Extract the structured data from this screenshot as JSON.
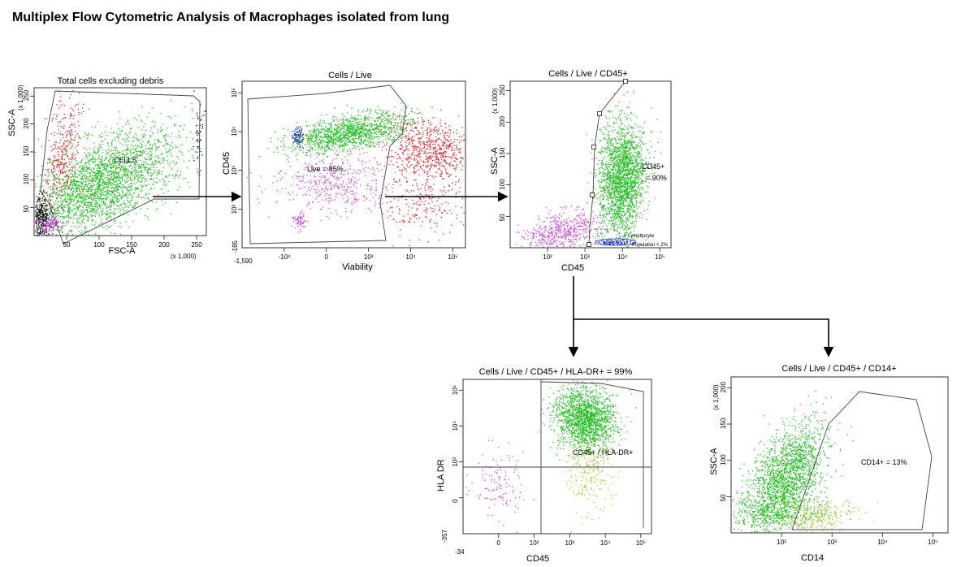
{
  "page": {
    "title": "Multiplex Flow Cytometric Analysis of Macrophages isolated from lung"
  },
  "colors": {
    "green": "#1fbf1f",
    "red": "#e02020",
    "purple": "#cc44dd",
    "blue": "#2233cc",
    "black": "#111111",
    "yellowgreen": "#aacc22",
    "gate": "#555555",
    "arrow": "#000000"
  },
  "chart_data": [
    {
      "id": "p1",
      "type": "scatter",
      "title": "Total cells excluding debris",
      "xlabel": "FSC-A",
      "ylabel": "SSC-A",
      "xscale_note": "(x 1,000)",
      "yscale_note": "(x 1,000)",
      "xlim": [
        0,
        262
      ],
      "ylim": [
        0,
        262
      ],
      "xticks": [
        "50",
        "100",
        "150",
        "200",
        "250"
      ],
      "yticks": [
        "50",
        "100",
        "150",
        "200",
        "250"
      ],
      "gate_label": "CELLS",
      "populations": [
        {
          "color": "green",
          "label": "cells",
          "approx_count": 2200,
          "cx": 110,
          "cy": 95,
          "sx": 40,
          "sy": 45
        },
        {
          "color": "red",
          "label": "red-cells",
          "approx_count": 400,
          "cx": 45,
          "cy": 130,
          "sx": 15,
          "sy": 35
        },
        {
          "color": "black",
          "label": "debris",
          "approx_count": 350,
          "cx": 8,
          "cy": 20,
          "sx": 6,
          "sy": 12
        },
        {
          "color": "purple",
          "label": "small",
          "approx_count": 120,
          "cx": 25,
          "cy": 25,
          "sx": 7,
          "sy": 6
        }
      ]
    },
    {
      "id": "p2",
      "type": "scatter",
      "title": "Cells / Live",
      "xlabel": "Viability",
      "ylabel": "CD45",
      "xticks": [
        "-10³",
        "0",
        "10³",
        "10⁴",
        "10⁵"
      ],
      "yticks": [
        "10²",
        "10³",
        "10⁴",
        "10⁵"
      ],
      "xmin_label": "-1,590",
      "ymin_label": "-185",
      "gate_label": "Live = 85%",
      "populations": [
        {
          "color": "green",
          "label": "CD45+ live",
          "approx_count": 1300
        },
        {
          "color": "red",
          "label": "dead",
          "approx_count": 900
        },
        {
          "color": "purple",
          "label": "CD45- live",
          "approx_count": 500
        },
        {
          "color": "blue",
          "label": "lymphocytes",
          "approx_count": 80
        }
      ]
    },
    {
      "id": "p3",
      "type": "scatter",
      "title": "Cells / Live / CD45+",
      "xlabel": "CD45",
      "ylabel": "SSC-A",
      "yscale_note": "(x 1,000)",
      "xticks": [
        "10²",
        "10³",
        "10⁴",
        "10⁵"
      ],
      "yticks": [
        "50",
        "100",
        "150",
        "200",
        "250"
      ],
      "gate_label": "CD45+\n= 90%",
      "annotation": "= Lymphocyte Population < 2%",
      "populations": [
        {
          "color": "green",
          "label": "CD45+",
          "approx_count": 2200
        },
        {
          "color": "purple",
          "label": "CD45-",
          "approx_count": 600
        },
        {
          "color": "blue",
          "label": "lymphocytes",
          "approx_count": 100
        }
      ]
    },
    {
      "id": "p4",
      "type": "scatter",
      "title": "Cells / Live / CD45+ / HLA-DR+ = 99%",
      "xlabel": "CD45",
      "ylabel": "HLA DR",
      "xticks": [
        "0",
        "10²",
        "10³",
        "10⁴",
        "10⁵"
      ],
      "yticks": [
        "0",
        "10³",
        "10⁴",
        "10⁵"
      ],
      "xmin_label": "-34",
      "ymin_label": "-357",
      "gate_label": "CD45+ / HLA-DR+",
      "populations": [
        {
          "color": "green",
          "label": "CD45+ HLA-DR+",
          "approx_count": 1800
        },
        {
          "color": "yellowgreen",
          "label": "transition",
          "approx_count": 200
        },
        {
          "color": "purple",
          "label": "CD45-",
          "approx_count": 120
        }
      ]
    },
    {
      "id": "p5",
      "type": "scatter",
      "title": "Cells / Live / CD45+ / CD14+",
      "xlabel": "CD14",
      "ylabel": "SSC-A",
      "yscale_note": "(x 1,000)",
      "xticks": [
        "10²",
        "10³",
        "10⁴",
        "10⁵"
      ],
      "yticks": [
        "50",
        "100",
        "150",
        "200"
      ],
      "gate_label": "CD14+ = 13%",
      "populations": [
        {
          "color": "green",
          "label": "CD14 low",
          "approx_count": 2000
        },
        {
          "color": "yellowgreen",
          "label": "CD14+",
          "approx_count": 250
        }
      ]
    }
  ]
}
